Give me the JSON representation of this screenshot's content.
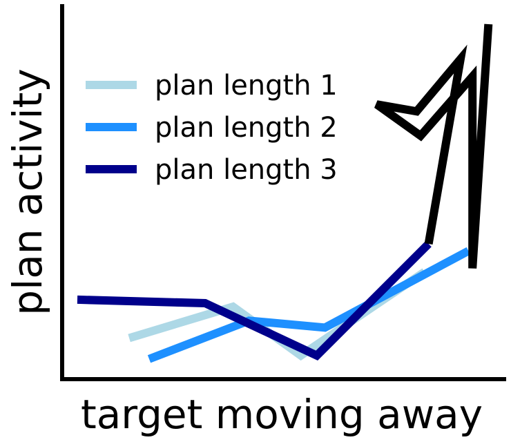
{
  "chart_data": {
    "type": "line",
    "xlabel": "target moving away",
    "ylabel": "plan activity",
    "grid": false,
    "legend_position": "upper-left",
    "xlim": [
      0,
      1
    ],
    "ylim": [
      0,
      1
    ],
    "series": [
      {
        "name": "plan length 1",
        "color": "#add8e6",
        "points": [
          [
            0.13,
            0.1
          ],
          [
            0.39,
            0.19
          ],
          [
            0.56,
            0.05
          ],
          [
            0.87,
            0.29
          ]
        ]
      },
      {
        "name": "plan length 2",
        "color": "#1e90ff",
        "points": [
          [
            0.18,
            0.04
          ],
          [
            0.43,
            0.15
          ],
          [
            0.62,
            0.13
          ],
          [
            0.98,
            0.35
          ]
        ]
      },
      {
        "name": "plan length 3",
        "color": "#00008b",
        "points": [
          [
            0.0,
            0.21
          ],
          [
            0.32,
            0.2
          ],
          [
            0.6,
            0.05
          ],
          [
            0.88,
            0.37
          ]
        ]
      },
      {
        "name": "",
        "color": "#000000",
        "points": [
          [
            0.88,
            0.37
          ],
          [
            0.96,
            0.9
          ],
          [
            0.85,
            0.75
          ],
          [
            0.75,
            0.77
          ],
          [
            0.86,
            0.68
          ],
          [
            0.99,
            0.85
          ],
          [
            0.99,
            0.3
          ],
          [
            1.03,
            1.0
          ]
        ]
      }
    ]
  }
}
